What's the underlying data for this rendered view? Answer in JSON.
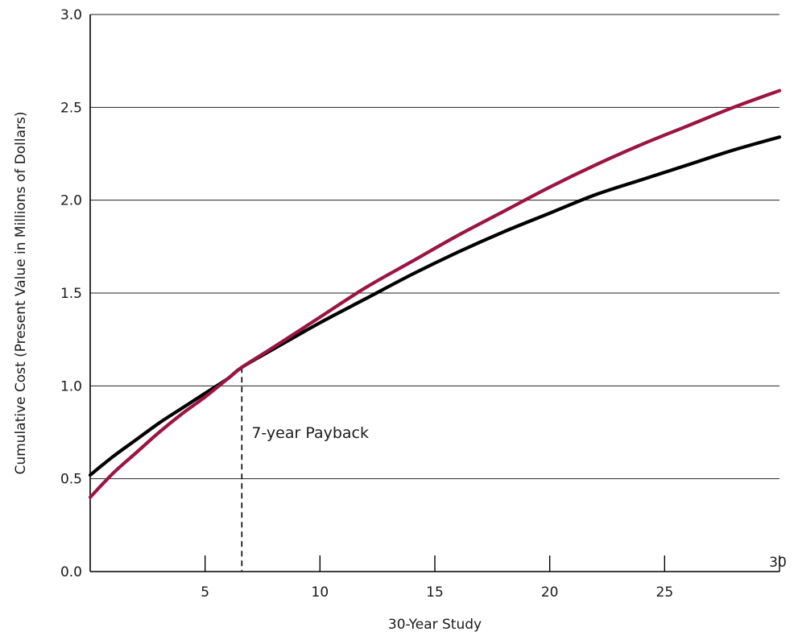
{
  "chart_data": {
    "type": "line",
    "title": "",
    "xlabel": "30-Year Study",
    "ylabel": "Cumulative Cost (Present Value in Millions of Dollars)",
    "xlim": [
      0,
      30
    ],
    "ylim": [
      0,
      3
    ],
    "x_ticks": [
      5,
      10,
      15,
      20,
      25,
      30
    ],
    "x_tick_labels": [
      "5",
      "10",
      "15",
      "20",
      "25",
      "30"
    ],
    "y_ticks": [
      0,
      0.5,
      1,
      1.5,
      2,
      2.5,
      3
    ],
    "y_tick_labels": [
      "0.0",
      "0.5",
      "1.0",
      "1.5",
      "2.0",
      "2.5",
      "3.0"
    ],
    "grid": "horizontal",
    "series": [
      {
        "color": "#000000",
        "x": [
          0,
          1,
          2,
          3,
          4,
          5,
          6,
          6.6,
          8,
          10,
          12,
          14,
          16,
          18,
          20,
          22,
          24,
          26,
          28,
          30
        ],
        "values": [
          0.52,
          0.62,
          0.71,
          0.8,
          0.88,
          0.96,
          1.04,
          1.1,
          1.2,
          1.34,
          1.47,
          1.6,
          1.72,
          1.83,
          1.93,
          2.03,
          2.11,
          2.19,
          2.27,
          2.34
        ]
      },
      {
        "color": "#9b1443",
        "x": [
          0,
          1,
          2,
          3,
          4,
          5,
          6,
          6.6,
          8,
          10,
          12,
          14,
          16,
          18,
          20,
          22,
          24,
          26,
          28,
          30
        ],
        "values": [
          0.4,
          0.53,
          0.64,
          0.75,
          0.85,
          0.94,
          1.04,
          1.1,
          1.21,
          1.37,
          1.53,
          1.67,
          1.81,
          1.94,
          2.07,
          2.19,
          2.3,
          2.4,
          2.5,
          2.59
        ]
      }
    ],
    "annotations": [
      {
        "text": "7-year Payback",
        "x": 6.6,
        "y": 1.1,
        "style": "dashed vertical line"
      }
    ]
  }
}
